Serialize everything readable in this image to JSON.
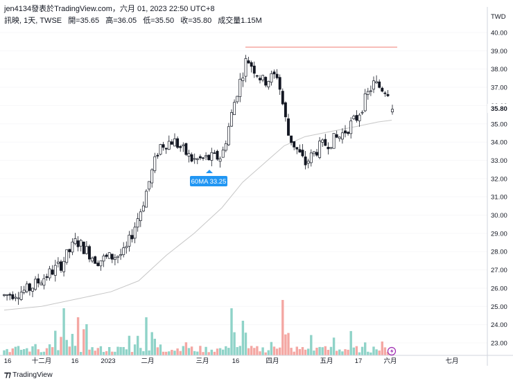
{
  "header": {
    "publisher_line": "jen4134發表於TradingView.com，六月 01, 2023 22:50 UTC+8",
    "symbol_line": "訊映, 1天, TWSE",
    "ohlc": {
      "open": "開=35.65",
      "high": "高=36.05",
      "low": "低=35.50",
      "close": "收=35.80",
      "volume": "成交量1.15M"
    }
  },
  "price_axis": {
    "currency": "TWD",
    "last_price_label": "35.80",
    "ticks": [
      "40.00",
      "39.00",
      "38.00",
      "37.00",
      "36.00",
      "35.00",
      "34.00",
      "33.00",
      "32.00",
      "31.00",
      "30.00",
      "29.00",
      "28.00",
      "27.00",
      "26.00",
      "25.00",
      "24.00",
      "23.00"
    ]
  },
  "time_axis": {
    "labels": [
      "16",
      "十二月",
      "16",
      "2023",
      "二月",
      "三月",
      "16",
      "四月",
      "五月",
      "17",
      "六月",
      "七月"
    ]
  },
  "annotation": {
    "label": "60MA 33.25"
  },
  "footer": {
    "brand": "TradingView"
  },
  "colors": {
    "up_candle": "#ffffff",
    "down_candle": "#131722",
    "candle_outline": "#131722",
    "volume_up": "#8fd3c8",
    "volume_down": "#f4a7a3",
    "ma_line": "#c7c7c7",
    "high_line": "#f28b82",
    "annotation_bg": "#2196f3"
  },
  "chart_data": {
    "type": "candlestick",
    "series": [
      {
        "name": "訊映",
        "kind": "ohlc",
        "key_points": [
          {
            "date": "十一月中",
            "price_low": 25.2,
            "price_high": 26.3
          },
          {
            "date": "2023 一月",
            "price_low": 26.9,
            "price_high": 29.6
          },
          {
            "date": "二月",
            "price_low": 29.0,
            "price_high": 34.8
          },
          {
            "date": "三月中",
            "price_low": 32.0,
            "price_high": 39.2
          },
          {
            "date": "四月底",
            "price_low": 31.8,
            "price_high": 34.3
          },
          {
            "date": "五月中",
            "price_low": 33.6,
            "price_high": 37.4
          },
          {
            "date": "六月 01",
            "open": 35.65,
            "high": 36.05,
            "low": 35.5,
            "close": 35.8
          }
        ]
      },
      {
        "name": "60MA",
        "kind": "line",
        "last_value": 33.25
      },
      {
        "name": "成交量",
        "kind": "volume",
        "last_value": "1.15M"
      }
    ],
    "high_reference_price": 39.2,
    "ylim": [
      22.5,
      40.6
    ]
  }
}
